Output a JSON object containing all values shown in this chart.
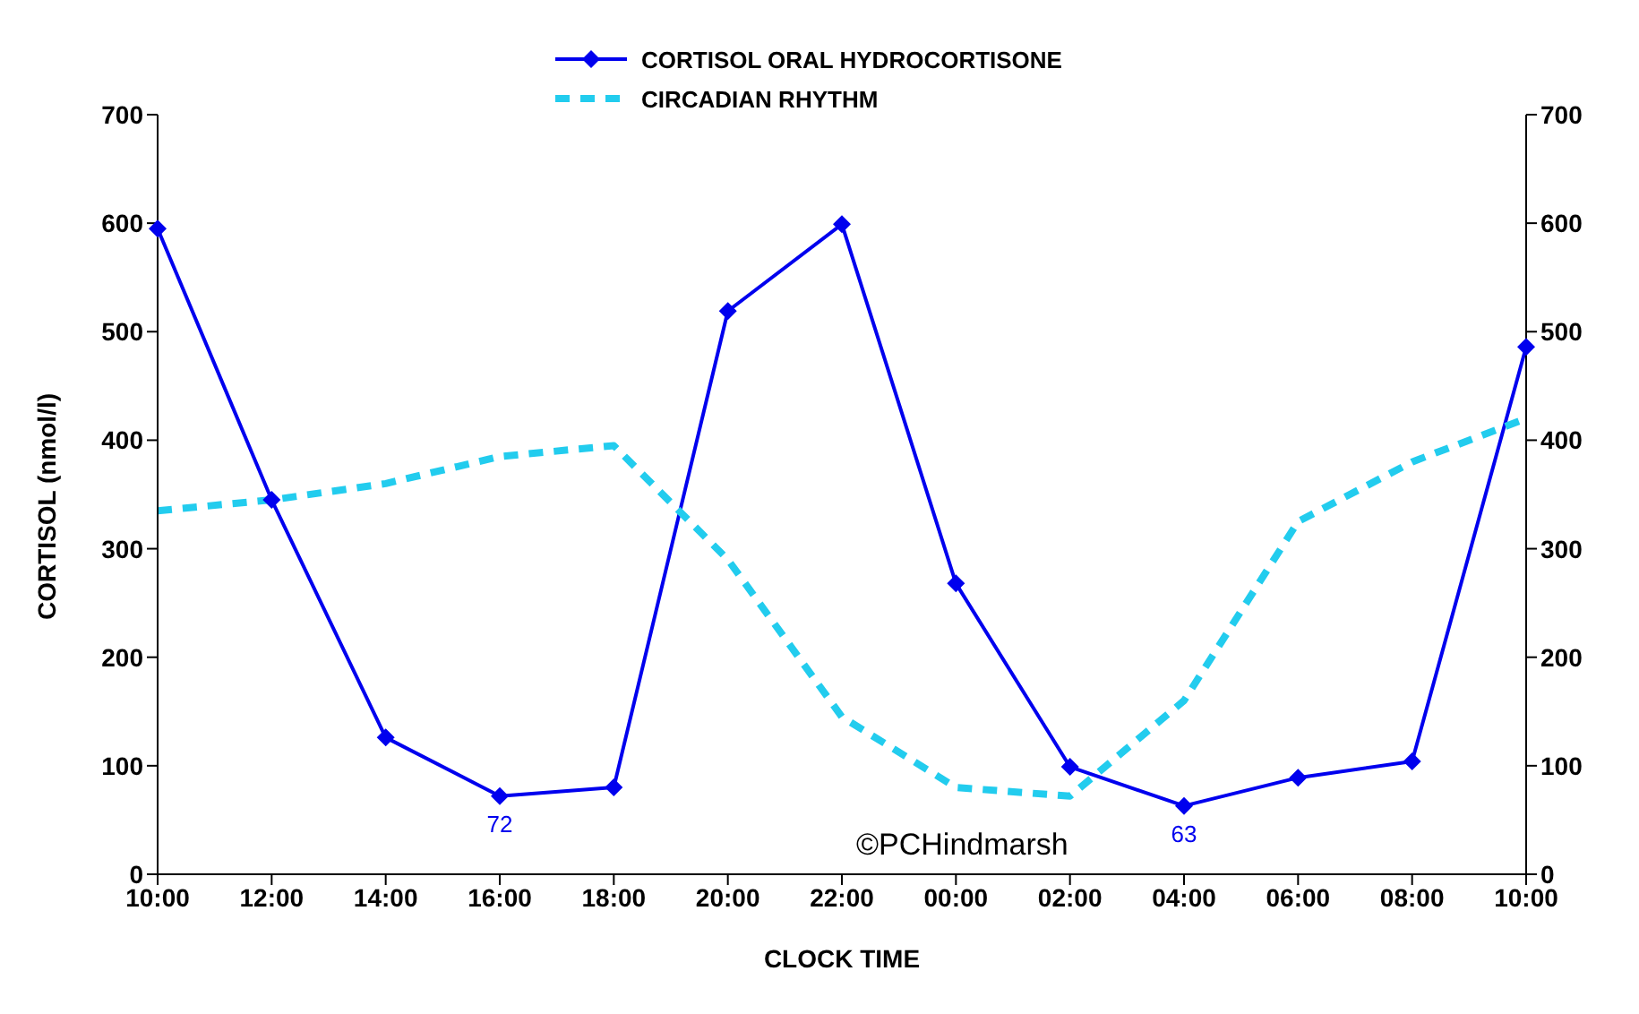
{
  "chart_data": {
    "type": "line",
    "xlabel": "CLOCK TIME",
    "ylabel": "CORTISOL (nmol/l)",
    "categories": [
      "10:00",
      "12:00",
      "14:00",
      "16:00",
      "18:00",
      "20:00",
      "22:00",
      "00:00",
      "02:00",
      "04:00",
      "06:00",
      "08:00",
      "10:00"
    ],
    "series": [
      {
        "name": "CORTISOL ORAL HYDROCORTISONE",
        "color": "#0000ee",
        "marker": "diamond",
        "line_style": "solid",
        "values": [
          595,
          345,
          126,
          72,
          80,
          519,
          599,
          268,
          99,
          63,
          89,
          104,
          486
        ],
        "value_labels": [
          null,
          null,
          null,
          "72",
          null,
          null,
          null,
          null,
          null,
          "63",
          null,
          null,
          null
        ]
      },
      {
        "name": "CIRCADIAN RHYTHM",
        "color": "#22ccee",
        "marker": "none",
        "line_style": "dashed",
        "values": [
          335,
          345,
          360,
          385,
          395,
          290,
          145,
          80,
          72,
          160,
          325,
          380,
          420
        ]
      }
    ],
    "ylim": [
      0,
      700
    ],
    "yticks": [
      0,
      100,
      200,
      300,
      400,
      500,
      600,
      700
    ],
    "y2lim": [
      0,
      700
    ],
    "y2ticks": [
      0,
      100,
      200,
      300,
      400,
      500,
      600,
      700
    ],
    "legend": "top",
    "grid": false,
    "annotations": [
      "©PCHindmarsh"
    ]
  }
}
